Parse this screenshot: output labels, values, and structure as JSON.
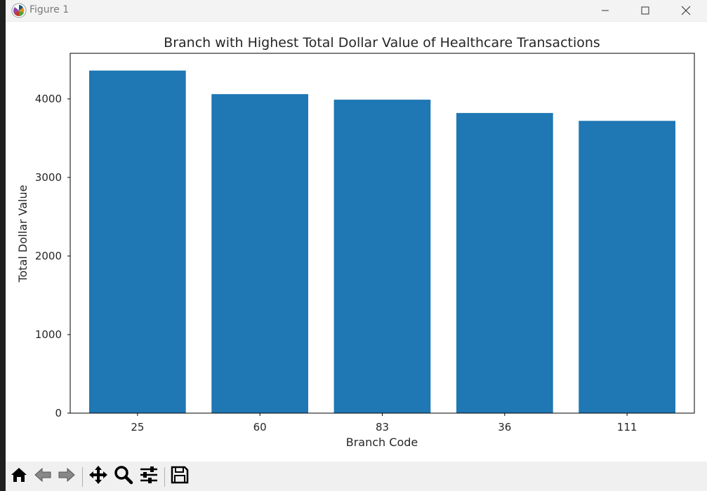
{
  "window": {
    "title": "Figure 1"
  },
  "window_controls": [
    "minimize-icon",
    "maximize-icon",
    "close-icon"
  ],
  "toolbar": {
    "buttons": [
      "home-icon",
      "back-arrow-icon",
      "forward-arrow-icon",
      "pan-move-icon",
      "zoom-magnifier-icon",
      "configure-subplots-icon",
      "save-floppy-icon"
    ]
  },
  "colors": {
    "bar": "#1f77b4",
    "axis": "#000000",
    "text": "#262626"
  },
  "chart_data": {
    "type": "bar",
    "title": "Branch with Highest Total Dollar Value of Healthcare Transactions",
    "xlabel": "Branch Code",
    "ylabel": "Total Dollar Value",
    "categories": [
      "25",
      "60",
      "83",
      "36",
      "111"
    ],
    "values": [
      4360,
      4060,
      3990,
      3820,
      3720
    ],
    "ylim": [
      0,
      4580
    ],
    "yticks": [
      "0",
      "1000",
      "2000",
      "3000",
      "4000"
    ],
    "grid": false
  }
}
